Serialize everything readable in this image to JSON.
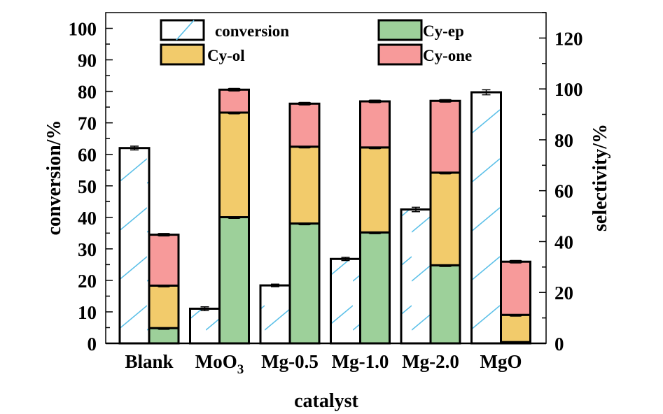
{
  "chart_data": {
    "type": "bar",
    "title": "",
    "xlabel": "catalyst",
    "ylabel": "conversion/%",
    "y2label": "selectivity/%",
    "categories": [
      "Blank",
      "MoO3",
      "Mg-0.5",
      "Mg-1.0",
      "Mg-2.0",
      "MgO"
    ],
    "category_display": [
      {
        "main": "Blank",
        "sub": ""
      },
      {
        "main": "MoO",
        "sub": "3"
      },
      {
        "main": "Mg-0.5",
        "sub": ""
      },
      {
        "main": "Mg-1.0",
        "sub": ""
      },
      {
        "main": "Mg-2.0",
        "sub": ""
      },
      {
        "main": "MgO",
        "sub": ""
      }
    ],
    "ylim": [
      0,
      105
    ],
    "y2lim": [
      0,
      130
    ],
    "yticks": [
      0,
      10,
      20,
      30,
      40,
      50,
      60,
      70,
      80,
      90,
      100
    ],
    "y2ticks": [
      0,
      20,
      40,
      60,
      80,
      100,
      120
    ],
    "grid": false,
    "legend_position": "top",
    "series": [
      {
        "name": "conversion",
        "axis": "left",
        "kind": "hatched",
        "color": "#ffffff",
        "hatch_color": "#5bc0e8",
        "values": [
          62.0,
          11.0,
          18.4,
          26.8,
          42.5,
          79.7
        ],
        "errors": [
          0.6,
          0.6,
          0.4,
          0.5,
          0.7,
          0.8
        ]
      },
      {
        "name": "Cy-ep",
        "axis": "right",
        "kind": "stacked",
        "color": "#9dd09a",
        "values": [
          6.0,
          49.6,
          47.1,
          43.6,
          30.7,
          0.5
        ]
      },
      {
        "name": "Cy-ol",
        "axis": "right",
        "kind": "stacked",
        "color": "#f2cb6b",
        "values": [
          16.7,
          41.1,
          30.2,
          33.4,
          36.4,
          10.7
        ]
      },
      {
        "name": "Cy-one",
        "axis": "right",
        "kind": "stacked",
        "color": "#f79a9a",
        "values": [
          20.0,
          9.0,
          16.9,
          18.1,
          28.2,
          20.9
        ]
      }
    ],
    "legend": [
      {
        "name": "conversion",
        "series": 0
      },
      {
        "name": "Cy-ep",
        "series": 1
      },
      {
        "name": "Cy-ol",
        "series": 2
      },
      {
        "name": "Cy-one",
        "series": 3
      }
    ]
  }
}
